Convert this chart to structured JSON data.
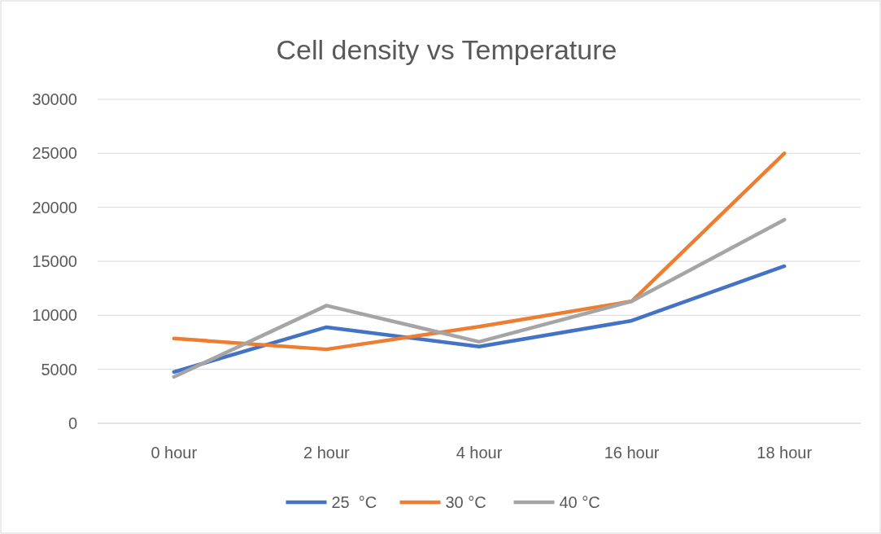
{
  "chart_data": {
    "type": "line",
    "title": "Cell density vs Temperature",
    "categories": [
      "0 hour",
      "2 hour",
      "4 hour",
      "16 hour",
      "18 hour"
    ],
    "series": [
      {
        "name": "25  °C",
        "color": "#4472c4",
        "values": [
          4750,
          8900,
          7100,
          9500,
          14550
        ]
      },
      {
        "name": "30 °C",
        "color": "#ed7d31",
        "values": [
          7850,
          6850,
          8950,
          11300,
          25000
        ]
      },
      {
        "name": "40 °C",
        "color": "#a5a5a5",
        "values": [
          4300,
          10900,
          7550,
          11300,
          18850
        ]
      }
    ],
    "ylim": [
      0,
      30000
    ],
    "yticks": [
      0,
      5000,
      10000,
      15000,
      20000,
      25000,
      30000
    ],
    "grid": "y",
    "legend": "bottom",
    "marker": "none",
    "line_style": "solid"
  }
}
